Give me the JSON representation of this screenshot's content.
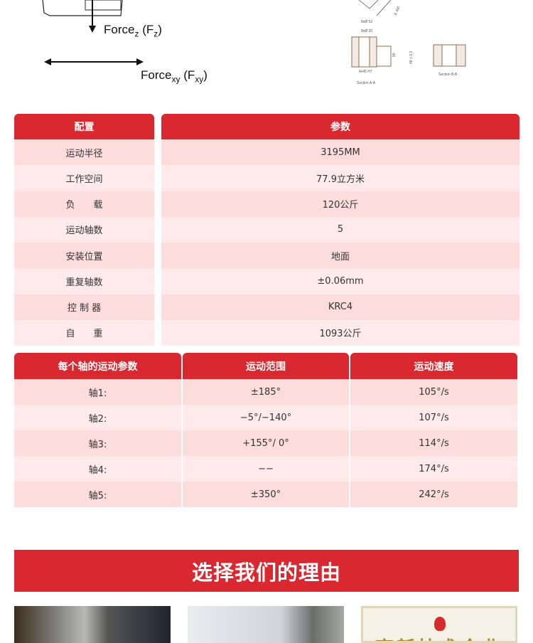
{
  "diagram": {
    "force_z": {
      "base": "Force",
      "sub": "z",
      "paren": "F",
      "paren_sub": "z"
    },
    "force_xy": {
      "base": "Force",
      "sub": "xy",
      "paren": "F",
      "paren_sub": "xy"
    },
    "labels": [
      "8xØ 53",
      "8xØ 30",
      "4x45 H7",
      "Section A-A",
      "Section B-B",
      "90",
      "48 ± 0.3",
      "R 400"
    ]
  },
  "config_table": {
    "headers": [
      "配置",
      "参数"
    ],
    "rows": [
      [
        "运动半径",
        "3195MM"
      ],
      [
        "工作空间",
        "77.9立方米"
      ],
      [
        "负　　载",
        "120公斤"
      ],
      [
        "运动轴数",
        "5"
      ],
      [
        "安装位置",
        "地面"
      ],
      [
        "重复轴数",
        "±0.06mm"
      ],
      [
        "控 制 器",
        "KRC4"
      ],
      [
        "自　　重",
        "1093公斤"
      ]
    ]
  },
  "axis_table": {
    "headers": [
      "每个轴的运动参数",
      "运动范围",
      "运动速度"
    ],
    "rows": [
      [
        "轴1:",
        "±185°",
        "105°/s"
      ],
      [
        "轴2:",
        "−5°/−140°",
        "107°/s"
      ],
      [
        "轴3:",
        "+155°/ 0°",
        "114°/s"
      ],
      [
        "轴4:",
        "−−",
        "174°/s"
      ],
      [
        "轴5:",
        "±350°",
        "242°/s"
      ]
    ]
  },
  "banner": {
    "title": "选择我们的理由"
  },
  "certificate": {
    "text": "高新技术企业"
  },
  "colors": {
    "accent": "#d9282f",
    "row_dark": "#fddcdc",
    "row_light": "#feeaea"
  }
}
